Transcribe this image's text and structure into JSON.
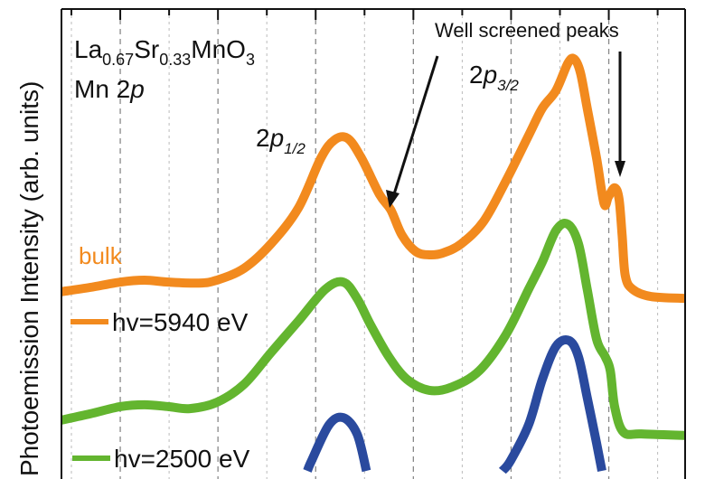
{
  "chart_data": {
    "type": "line",
    "title": "",
    "ylabel": "Photoemission Intensity (arb. units)",
    "xlabel": "",
    "xlim": [
      0,
      100
    ],
    "ylim": [
      0,
      100
    ],
    "grid": true,
    "legend_placement": "left",
    "annotations": {
      "compound_main": "La",
      "compound_sub1": "0.67",
      "compound_mid": "Sr",
      "compound_sub2": "0.33",
      "compound_end": "MnO",
      "compound_sub3": "3",
      "core_level_prefix": "Mn 2",
      "core_level_italic": "p",
      "peak_half_main": "2",
      "peak_half_italic": "p",
      "peak_half_sub": "1/2",
      "peak_three_main": "2",
      "peak_three_italic": "p",
      "peak_three_sub": "3/2",
      "well_screened": "Well screened peaks",
      "bulk": "bulk"
    },
    "series": [
      {
        "name": "hv=5940 eV",
        "color": "#f28a1e",
        "x": [
          0,
          4.6,
          9.4,
          13.3,
          17.2,
          22.0,
          24.9,
          29.3,
          33.6,
          38.0,
          41.6,
          43.8,
          45.9,
          48.1,
          51.0,
          52.8,
          54.6,
          56.8,
          59.0,
          61.2,
          64.1,
          67.7,
          71.3,
          74.9,
          77.1,
          79.3,
          81.2,
          82.2,
          83.2,
          84.3,
          85.8,
          87.0,
          87.7,
          88.7,
          89.4,
          89.9,
          90.4,
          91.6,
          94.5,
          100
        ],
        "y": [
          39.1,
          40.0,
          41.1,
          41.5,
          41.1,
          40.9,
          41.5,
          44.0,
          49.1,
          56.6,
          67.0,
          70.8,
          71.1,
          67.0,
          59.4,
          56.2,
          50.9,
          47.5,
          46.8,
          47.2,
          49.1,
          53.8,
          62.3,
          71.7,
          77.4,
          81.1,
          86.8,
          87.7,
          84.9,
          77.4,
          67.0,
          57.5,
          58.9,
          60.8,
          58.5,
          50.9,
          42.5,
          39.6,
          38.1,
          37.7
        ]
      },
      {
        "name": "hv=2500 eV",
        "color": "#63b52f",
        "x": [
          0,
          4.6,
          9.4,
          13.3,
          17.2,
          20.6,
          24.9,
          29.3,
          33.6,
          38.0,
          42.3,
          45.2,
          47.4,
          49.6,
          52.5,
          55.4,
          59.0,
          62.6,
          67.0,
          71.3,
          74.9,
          77.1,
          79.3,
          81.2,
          82.9,
          84.3,
          85.8,
          87.2,
          88.0,
          88.7,
          90.1,
          93.0,
          100
        ],
        "y": [
          12.3,
          13.6,
          15.1,
          15.5,
          15.1,
          14.7,
          16.0,
          19.8,
          26.4,
          33.0,
          39.6,
          41.1,
          37.7,
          32.1,
          25.5,
          20.8,
          18.5,
          19.2,
          22.6,
          30.2,
          39.6,
          45.3,
          51.9,
          53.2,
          49.1,
          39.6,
          29.2,
          25.5,
          22.6,
          15.1,
          9.8,
          9.4,
          9.1
        ]
      },
      {
        "color": "#2a4a9e",
        "x": [
          38.0,
          40.1,
          42.9,
          45.2,
          47.4,
          49.6,
          55.4,
          65.5,
          69.1,
          72.0,
          74.9,
          77.1,
          79.3,
          81.4,
          82.9,
          84.3,
          85.8,
          87.2
        ],
        "y": [
          -2.8,
          3.8,
          11.3,
          12.8,
          9.4,
          -1.9,
          -20,
          -15,
          -0.9,
          3.8,
          11.3,
          20.8,
          27.7,
          28.9,
          25.5,
          17.0,
          7.5,
          -1.9
        ]
      }
    ]
  }
}
